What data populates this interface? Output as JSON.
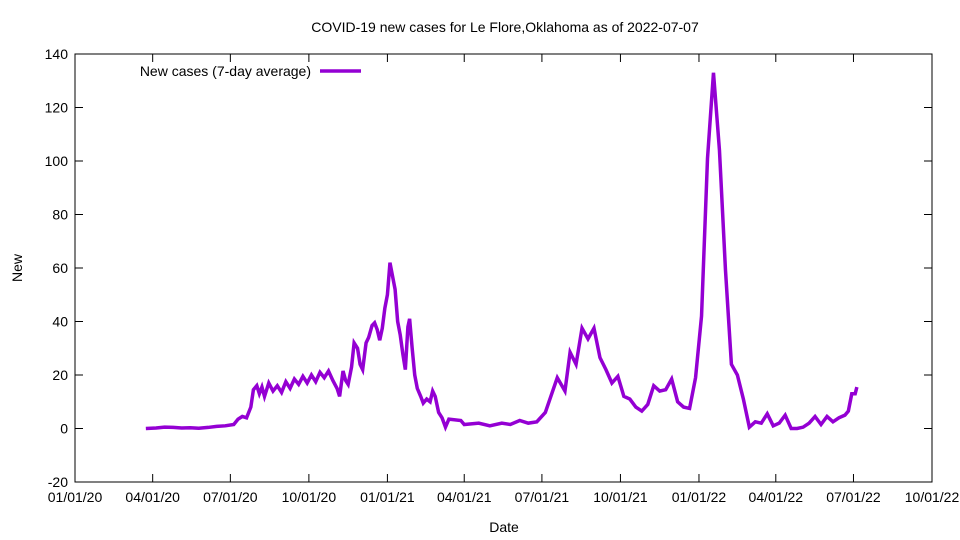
{
  "chart_data": {
    "type": "line",
    "title": "COVID-19 new cases for Le Flore,Oklahoma as of 2022-07-07",
    "xlabel": "Date",
    "ylabel": "New",
    "xlim": [
      "2020-01-01",
      "2022-10-01"
    ],
    "ylim": [
      -20,
      140
    ],
    "x_ticks": [
      "01/01/20",
      "04/01/20",
      "07/01/20",
      "10/01/20",
      "01/01/21",
      "04/01/21",
      "07/01/21",
      "10/01/21",
      "01/01/22",
      "04/01/22",
      "07/01/22",
      "10/01/22"
    ],
    "y_ticks": [
      -20,
      0,
      20,
      40,
      60,
      80,
      100,
      120,
      140
    ],
    "grid": false,
    "legend_position": "top-left",
    "color": "#9400d3",
    "series": [
      {
        "name": "New cases (7-day average)",
        "points": [
          [
            "2020-03-24",
            0
          ],
          [
            "2020-04-05",
            0.2
          ],
          [
            "2020-04-15",
            0.5
          ],
          [
            "2020-04-25",
            0.4
          ],
          [
            "2020-05-05",
            0.2
          ],
          [
            "2020-05-15",
            0.3
          ],
          [
            "2020-05-25",
            0.1
          ],
          [
            "2020-06-05",
            0.4
          ],
          [
            "2020-06-15",
            0.8
          ],
          [
            "2020-06-25",
            1.0
          ],
          [
            "2020-07-05",
            1.5
          ],
          [
            "2020-07-10",
            3.5
          ],
          [
            "2020-07-15",
            4.5
          ],
          [
            "2020-07-20",
            4.0
          ],
          [
            "2020-07-25",
            8.0
          ],
          [
            "2020-07-28",
            14.5
          ],
          [
            "2020-08-01",
            16.0
          ],
          [
            "2020-08-04",
            13.0
          ],
          [
            "2020-08-07",
            15.5
          ],
          [
            "2020-08-10",
            12.0
          ],
          [
            "2020-08-15",
            17.0
          ],
          [
            "2020-08-20",
            14.0
          ],
          [
            "2020-08-25",
            16.0
          ],
          [
            "2020-08-30",
            13.5
          ],
          [
            "2020-09-04",
            17.5
          ],
          [
            "2020-09-09",
            15.0
          ],
          [
            "2020-09-14",
            18.5
          ],
          [
            "2020-09-19",
            16.5
          ],
          [
            "2020-09-24",
            19.5
          ],
          [
            "2020-09-29",
            17.0
          ],
          [
            "2020-10-04",
            20.0
          ],
          [
            "2020-10-09",
            17.5
          ],
          [
            "2020-10-14",
            21.0
          ],
          [
            "2020-10-19",
            19.0
          ],
          [
            "2020-10-24",
            21.5
          ],
          [
            "2020-10-29",
            18.0
          ],
          [
            "2020-11-03",
            15.0
          ],
          [
            "2020-11-06",
            12.0
          ],
          [
            "2020-11-10",
            21.5
          ],
          [
            "2020-11-13",
            18.0
          ],
          [
            "2020-11-16",
            16.5
          ],
          [
            "2020-11-20",
            23.0
          ],
          [
            "2020-11-23",
            32.0
          ],
          [
            "2020-11-27",
            30.0
          ],
          [
            "2020-11-30",
            24.0
          ],
          [
            "2020-12-03",
            22.0
          ],
          [
            "2020-12-07",
            32.0
          ],
          [
            "2020-12-10",
            34.0
          ],
          [
            "2020-12-14",
            38.5
          ],
          [
            "2020-12-17",
            39.5
          ],
          [
            "2020-12-20",
            37.0
          ],
          [
            "2020-12-23",
            33.0
          ],
          [
            "2020-12-26",
            37.5
          ],
          [
            "2020-12-29",
            45.0
          ],
          [
            "2021-01-01",
            50.0
          ],
          [
            "2021-01-04",
            62.0
          ],
          [
            "2021-01-07",
            57.0
          ],
          [
            "2021-01-10",
            52.0
          ],
          [
            "2021-01-13",
            40.0
          ],
          [
            "2021-01-16",
            35.0
          ],
          [
            "2021-01-19",
            28.0
          ],
          [
            "2021-01-22",
            22.0
          ],
          [
            "2021-01-25",
            38.0
          ],
          [
            "2021-01-27",
            41.0
          ],
          [
            "2021-01-30",
            30.0
          ],
          [
            "2021-02-02",
            20.0
          ],
          [
            "2021-02-05",
            15.0
          ],
          [
            "2021-02-09",
            12.0
          ],
          [
            "2021-02-12",
            9.5
          ],
          [
            "2021-02-16",
            11.0
          ],
          [
            "2021-02-20",
            10.0
          ],
          [
            "2021-02-23",
            14.0
          ],
          [
            "2021-02-26",
            12.0
          ],
          [
            "2021-03-02",
            6.0
          ],
          [
            "2021-03-06",
            4.0
          ],
          [
            "2021-03-10",
            0.5
          ],
          [
            "2021-03-14",
            3.5
          ],
          [
            "2021-03-28",
            3.0
          ],
          [
            "2021-04-01",
            1.5
          ],
          [
            "2021-04-18",
            2.0
          ],
          [
            "2021-05-01",
            1.0
          ],
          [
            "2021-05-15",
            2.0
          ],
          [
            "2021-05-25",
            1.5
          ],
          [
            "2021-06-05",
            3.0
          ],
          [
            "2021-06-15",
            2.0
          ],
          [
            "2021-06-25",
            2.5
          ],
          [
            "2021-07-05",
            6.0
          ],
          [
            "2021-07-12",
            12.5
          ],
          [
            "2021-07-19",
            19.0
          ],
          [
            "2021-07-28",
            14.0
          ],
          [
            "2021-08-03",
            28.5
          ],
          [
            "2021-08-10",
            24.0
          ],
          [
            "2021-08-17",
            37.5
          ],
          [
            "2021-08-24",
            33.5
          ],
          [
            "2021-08-31",
            37.5
          ],
          [
            "2021-09-07",
            26.5
          ],
          [
            "2021-09-14",
            22.0
          ],
          [
            "2021-09-21",
            17.0
          ],
          [
            "2021-09-28",
            19.5
          ],
          [
            "2021-10-05",
            12.0
          ],
          [
            "2021-10-12",
            11.0
          ],
          [
            "2021-10-19",
            8.0
          ],
          [
            "2021-10-26",
            6.5
          ],
          [
            "2021-11-02",
            9.0
          ],
          [
            "2021-11-09",
            16.0
          ],
          [
            "2021-11-16",
            14.0
          ],
          [
            "2021-11-23",
            14.5
          ],
          [
            "2021-11-30",
            18.5
          ],
          [
            "2021-12-07",
            10.0
          ],
          [
            "2021-12-14",
            8.0
          ],
          [
            "2021-12-21",
            7.5
          ],
          [
            "2021-12-28",
            19.0
          ],
          [
            "2022-01-04",
            42.0
          ],
          [
            "2022-01-11",
            101.0
          ],
          [
            "2022-01-18",
            133.0
          ],
          [
            "2022-01-25",
            104.0
          ],
          [
            "2022-02-01",
            59.5
          ],
          [
            "2022-02-08",
            24.0
          ],
          [
            "2022-02-15",
            20.0
          ],
          [
            "2022-02-22",
            11.0
          ],
          [
            "2022-03-01",
            0.5
          ],
          [
            "2022-03-08",
            2.5
          ],
          [
            "2022-03-15",
            2.0
          ],
          [
            "2022-03-22",
            5.5
          ],
          [
            "2022-03-29",
            1.0
          ],
          [
            "2022-04-05",
            2.0
          ],
          [
            "2022-04-12",
            5.0
          ],
          [
            "2022-04-19",
            0.0
          ],
          [
            "2022-04-26",
            0.0
          ],
          [
            "2022-05-03",
            0.5
          ],
          [
            "2022-05-10",
            2.0
          ],
          [
            "2022-05-17",
            4.5
          ],
          [
            "2022-05-24",
            1.5
          ],
          [
            "2022-05-31",
            4.5
          ],
          [
            "2022-06-07",
            2.5
          ],
          [
            "2022-06-14",
            4.0
          ],
          [
            "2022-06-21",
            5.0
          ],
          [
            "2022-06-25",
            6.5
          ],
          [
            "2022-06-29",
            13.0
          ],
          [
            "2022-07-03",
            13.0
          ],
          [
            "2022-07-05",
            15.5
          ]
        ]
      }
    ]
  }
}
